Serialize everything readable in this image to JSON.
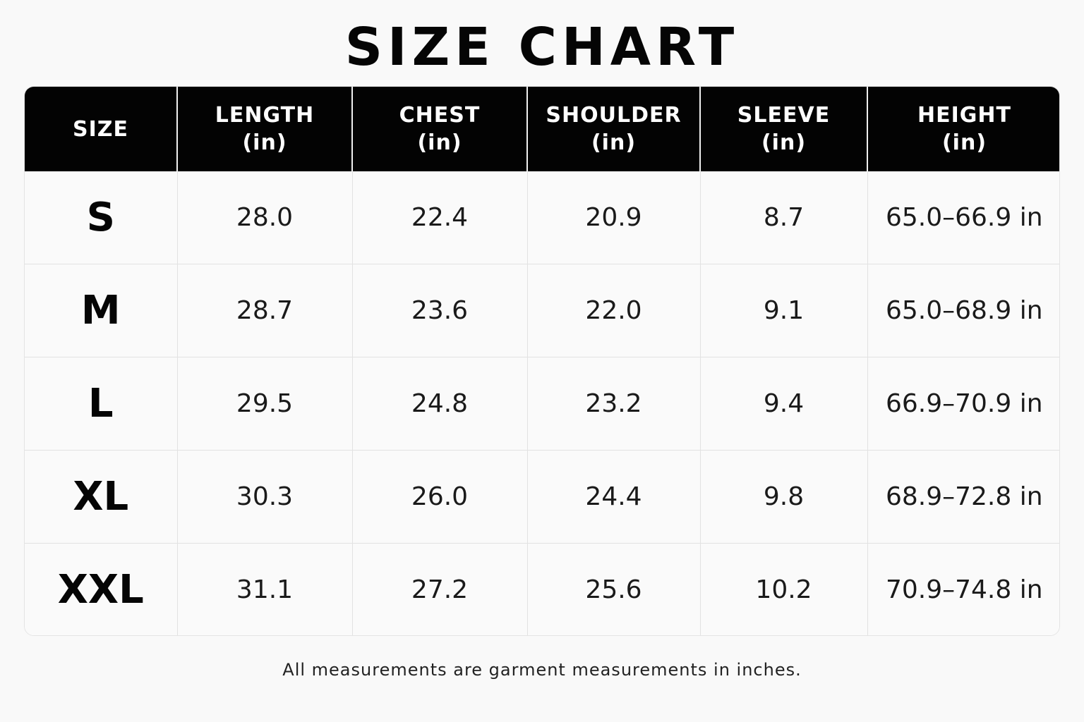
{
  "title": "SIZE CHART",
  "columns": [
    {
      "label": "SIZE",
      "unit": ""
    },
    {
      "label": "LENGTH",
      "unit": "(in)"
    },
    {
      "label": "CHEST",
      "unit": "(in)"
    },
    {
      "label": "SHOULDER",
      "unit": "(in)"
    },
    {
      "label": "SLEEVE",
      "unit": "(in)"
    },
    {
      "label": "HEIGHT",
      "unit": "(in)"
    }
  ],
  "rows": [
    {
      "size": "S",
      "length": "28.0",
      "chest": "22.4",
      "shoulder": "20.9",
      "sleeve": "8.7",
      "height": "65.0–66.9 in"
    },
    {
      "size": "M",
      "length": "28.7",
      "chest": "23.6",
      "shoulder": "22.0",
      "sleeve": "9.1",
      "height": "65.0–68.9 in"
    },
    {
      "size": "L",
      "length": "29.5",
      "chest": "24.8",
      "shoulder": "23.2",
      "sleeve": "9.4",
      "height": "66.9–70.9 in"
    },
    {
      "size": "XL",
      "length": "30.3",
      "chest": "26.0",
      "shoulder": "24.4",
      "sleeve": "9.8",
      "height": "68.9–72.8 in"
    },
    {
      "size": "XXL",
      "length": "31.1",
      "chest": "27.2",
      "shoulder": "25.6",
      "sleeve": "10.2",
      "height": "70.9–74.8 in"
    }
  ],
  "footnote": "All measurements are garment measurements in inches.",
  "colors": {
    "header_bg": "#030303",
    "header_text": "#ffffff",
    "page_bg": "#f9f9f9",
    "grid_line": "#e2e2e2"
  }
}
